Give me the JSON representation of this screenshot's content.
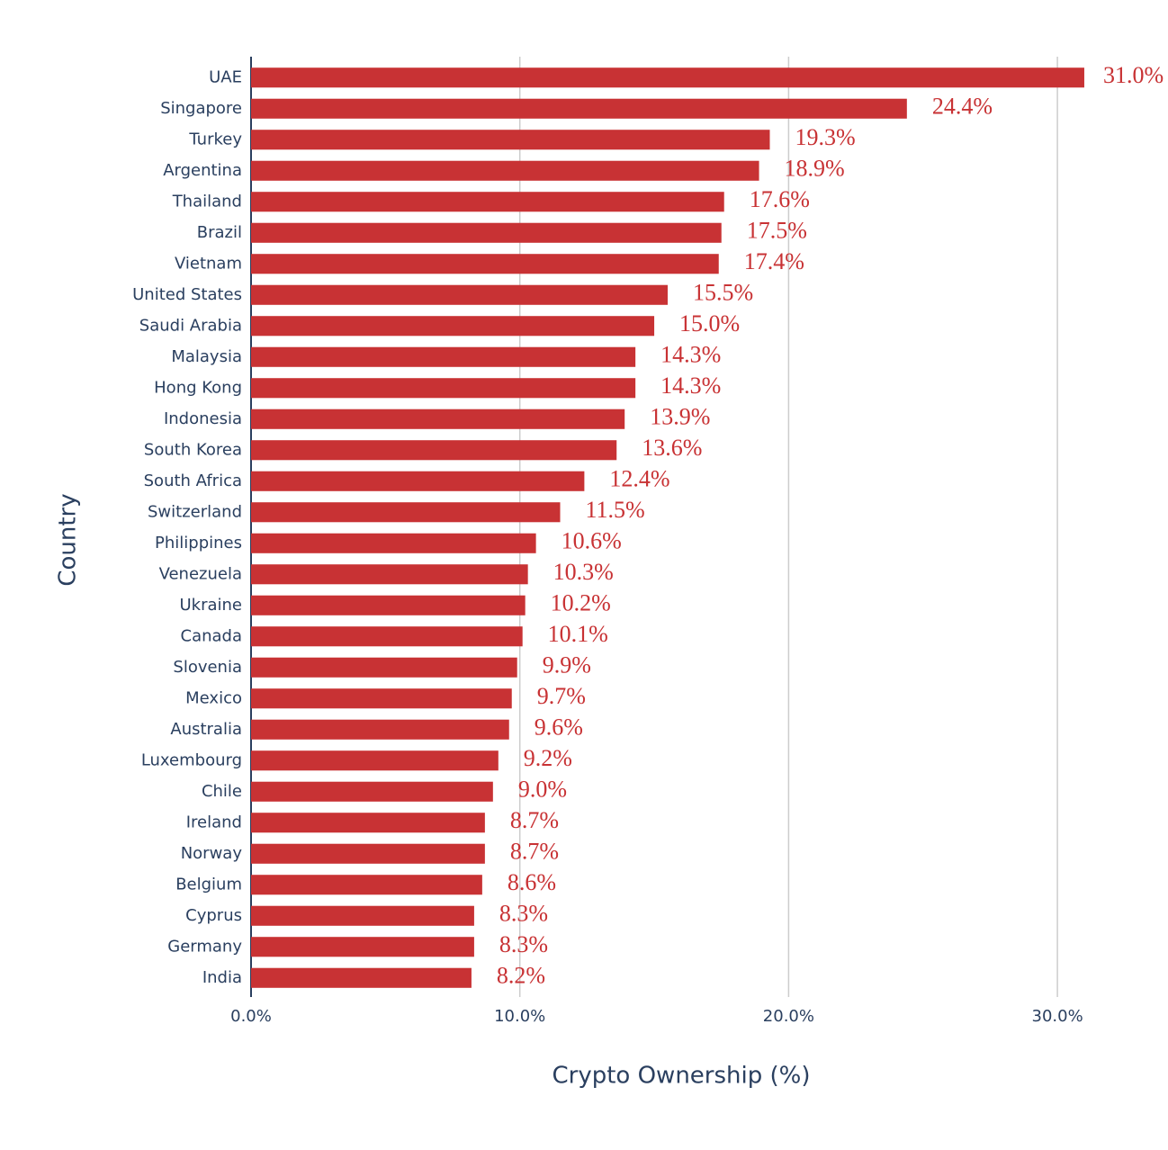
{
  "chart_data": {
    "type": "bar",
    "orientation": "horizontal",
    "x_label": "Crypto Ownership (%)",
    "y_label": "Country",
    "categories": [
      "UAE",
      "Singapore",
      "Turkey",
      "Argentina",
      "Thailand",
      "Brazil",
      "Vietnam",
      "United States",
      "Saudi Arabia",
      "Malaysia",
      "Hong Kong",
      "Indonesia",
      "South Korea",
      "South Africa",
      "Switzerland",
      "Philippines",
      "Venezuela",
      "Ukraine",
      "Canada",
      "Slovenia",
      "Mexico",
      "Australia",
      "Luxembourg",
      "Chile",
      "Ireland",
      "Norway",
      "Belgium",
      "Cyprus",
      "Germany",
      "India"
    ],
    "values": [
      31.0,
      24.4,
      19.3,
      18.9,
      17.6,
      17.5,
      17.4,
      15.5,
      15.0,
      14.3,
      14.3,
      13.9,
      13.6,
      12.4,
      11.5,
      10.6,
      10.3,
      10.2,
      10.1,
      9.9,
      9.7,
      9.6,
      9.2,
      9.0,
      8.7,
      8.7,
      8.6,
      8.3,
      8.3,
      8.2
    ],
    "value_labels": [
      "31.0%",
      "24.4%",
      "19.3%",
      "18.9%",
      "17.6%",
      "17.5%",
      "17.4%",
      "15.5%",
      "15.0%",
      "14.3%",
      "14.3%",
      "13.9%",
      "13.6%",
      "12.4%",
      "11.5%",
      "10.6%",
      "10.3%",
      "10.2%",
      "10.1%",
      "9.9%",
      "9.7%",
      "9.6%",
      "9.2%",
      "9.0%",
      "8.7%",
      "8.7%",
      "8.6%",
      "8.3%",
      "8.3%",
      "8.2%"
    ],
    "color": "#c83234",
    "xlim": [
      0,
      32
    ],
    "xticks": [
      {
        "value": 0,
        "label": "0.0%"
      },
      {
        "value": 10,
        "label": "10.0%"
      },
      {
        "value": 20,
        "label": "20.0%"
      },
      {
        "value": 30,
        "label": "30.0%"
      }
    ],
    "grid": true
  }
}
